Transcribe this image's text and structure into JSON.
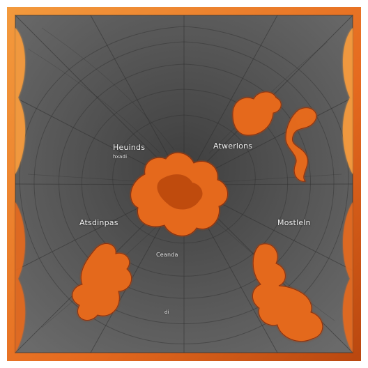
{
  "image": {
    "background_color": "#ffffff",
    "web_colors": {
      "dark_gray": "#4a4a4a",
      "mid_gray": "#5a5a5a",
      "light_gray": "#6b6b6b",
      "line_gray": "#2f2f2f",
      "orange": "#e56a1f",
      "deep_orange": "#b9470f",
      "light_orange": "#f39a3d"
    }
  },
  "labels": {
    "top_left": "Heuinds",
    "top_left_sub": "hxadi",
    "top_right": "Atwerlons",
    "mid_left": "Atsdinpas",
    "mid_right": "Mostleln",
    "center_bottom": "Ceanda",
    "bottom_dot": "di"
  }
}
